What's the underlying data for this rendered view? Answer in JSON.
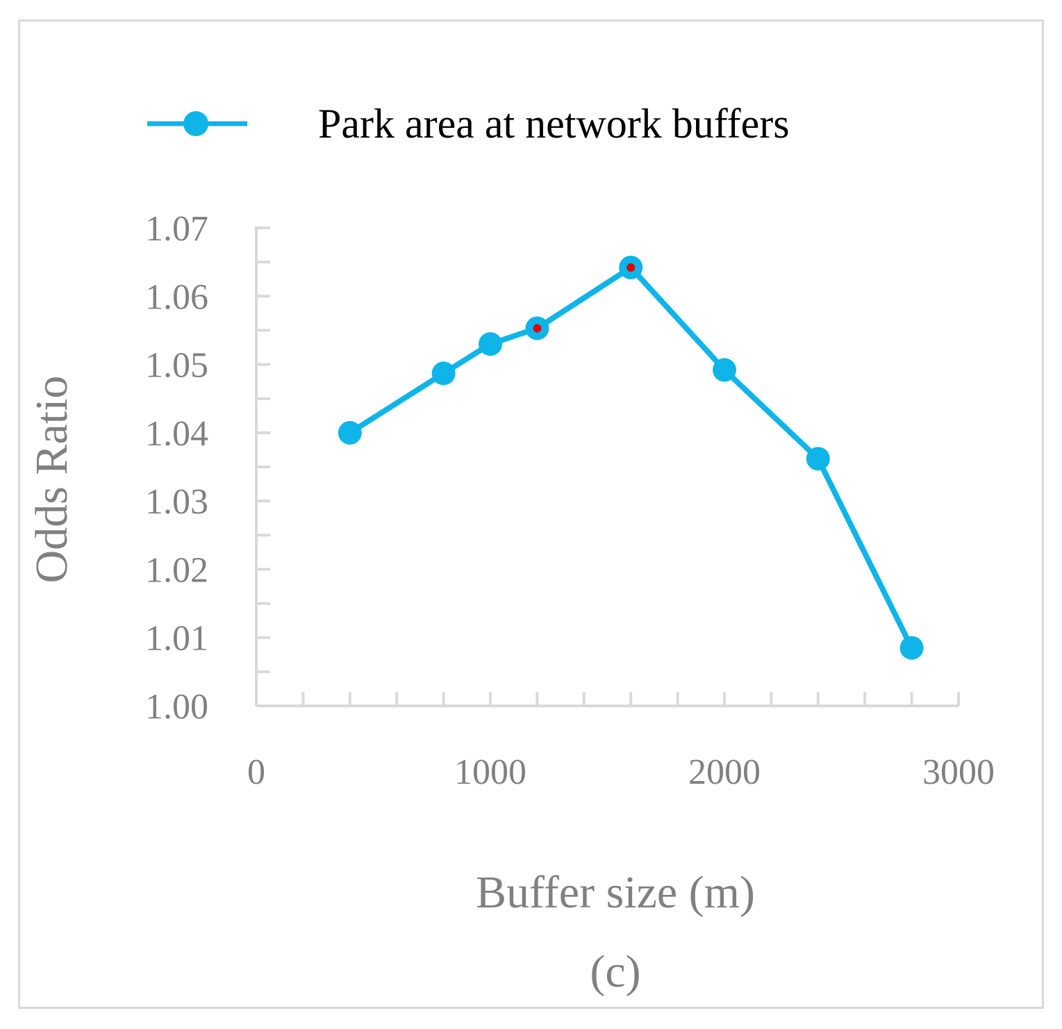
{
  "chart_data": {
    "type": "line",
    "title": "",
    "caption": "(c)",
    "xlabel": "Buffer size (m)",
    "ylabel": "Odds Ratio",
    "xlim": [
      0,
      3000
    ],
    "ylim": [
      1.0,
      1.07
    ],
    "x_ticks": [
      "0",
      "1000",
      "2000",
      "3000"
    ],
    "y_ticks": [
      "1.00",
      "1.01",
      "1.02",
      "1.03",
      "1.04",
      "1.05",
      "1.06",
      "1.07"
    ],
    "legend_position": "top",
    "grid": false,
    "series": [
      {
        "name": "Park area at network buffers",
        "color": "#0fb4e8",
        "highlight_color": "#e00000",
        "x": [
          400,
          800,
          1000,
          1200,
          1600,
          2000,
          2400,
          2800
        ],
        "y": [
          1.04,
          1.0487,
          1.053,
          1.0553,
          1.0642,
          1.0492,
          1.0362,
          1.0085
        ],
        "highlighted": [
          false,
          false,
          false,
          true,
          true,
          false,
          false,
          false
        ]
      }
    ]
  }
}
